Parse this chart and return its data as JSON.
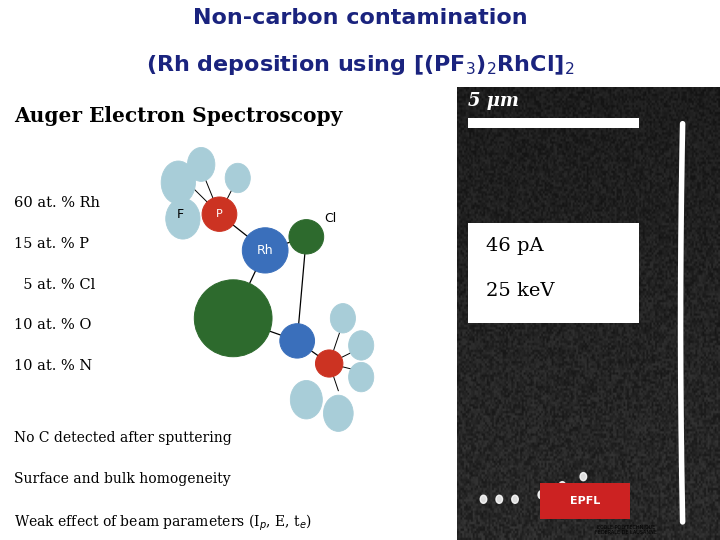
{
  "title_line1": "Non-carbon contamination",
  "title_line2": "(Rh deposition using [(PF$_3$)$_2$RhCl]$_2$",
  "title_color": "#1a237e",
  "separator_color": "#a04040",
  "bg_color": "#ffffff",
  "aes_title": "Auger Electron Spectroscopy",
  "composition": [
    "60 at. % Rh",
    "15 at. % P",
    "  5 at. % Cl",
    "10 at. % O",
    "10 at. % N"
  ],
  "notes": [
    "No C detected after sputtering",
    "Surface and bulk homogeneity",
    "Weak effect of beam parameters (I$_p$, E, t$_e$)"
  ],
  "light_blue": "#a8cdd8",
  "dark_blue": "#3a6fbb",
  "red_col": "#cc3322",
  "dark_green": "#2d6a2d",
  "box_text_line1": "46 pA",
  "box_text_line2": "25 keV",
  "scale_bar_text": "5 μm"
}
